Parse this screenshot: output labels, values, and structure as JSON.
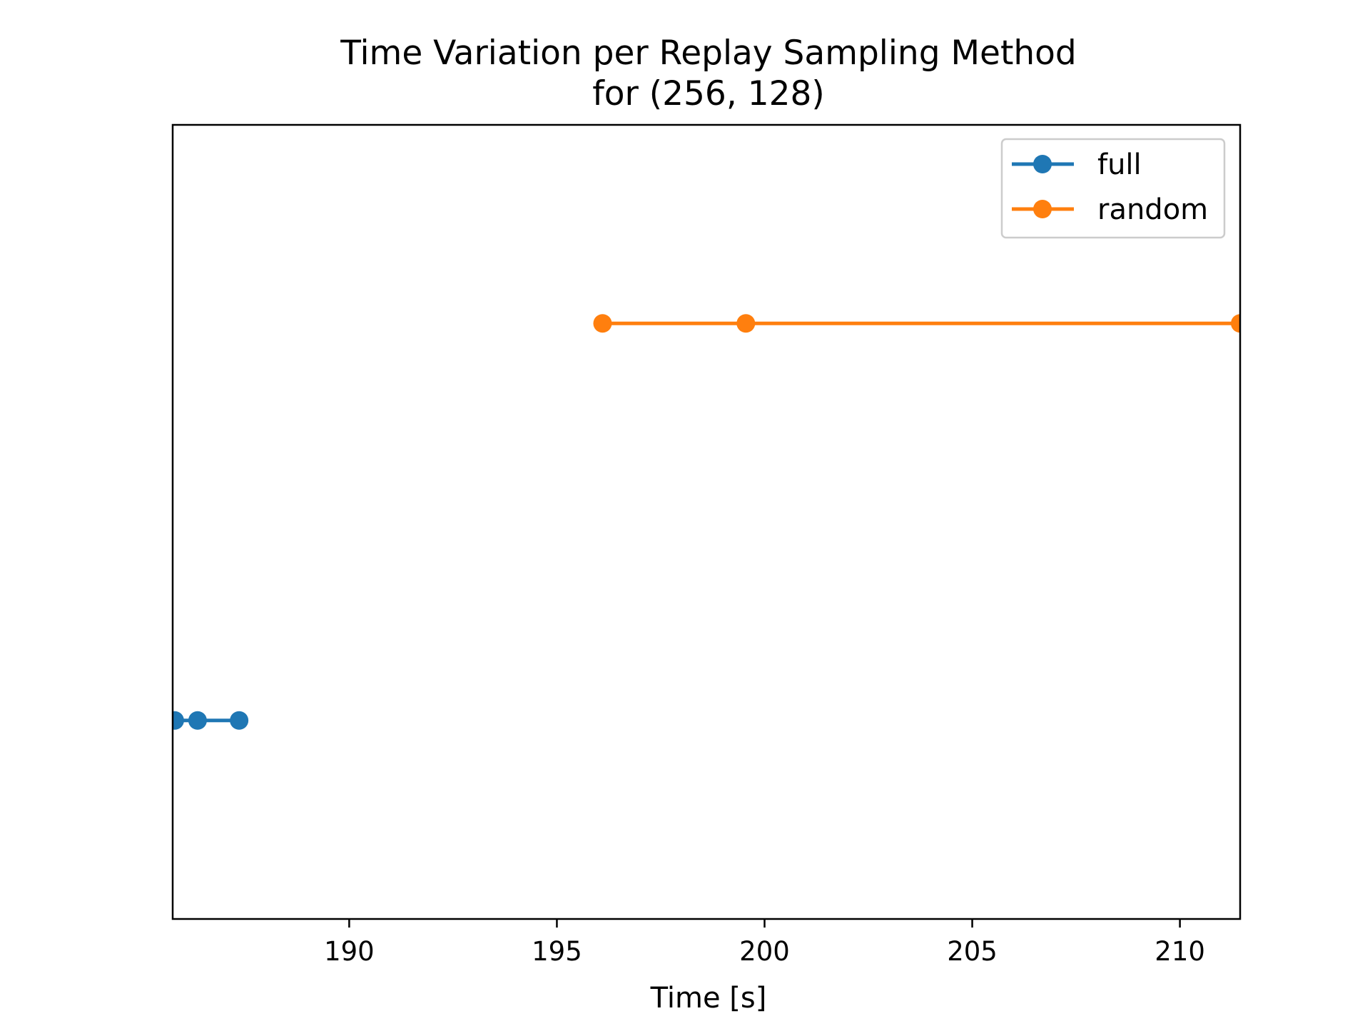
{
  "chart_data": {
    "type": "line",
    "title": "Time Variation per Replay Sampling Method",
    "subtitle": "for (256, 128)",
    "xlabel": "Time [s]",
    "ylabel": "",
    "xlim": [
      185.75,
      211.45
    ],
    "ylim": [
      -0.5,
      1.5
    ],
    "xticks": [
      190,
      195,
      200,
      205,
      210
    ],
    "yticks_visible": false,
    "grid": false,
    "legend_position": "top-right",
    "series": [
      {
        "name": "full",
        "color": "#1f77b4",
        "y": 0,
        "x": [
          185.8,
          186.35,
          187.35
        ]
      },
      {
        "name": "random",
        "color": "#ff7f0e",
        "y": 1,
        "x": [
          196.1,
          199.55,
          211.45
        ]
      }
    ]
  }
}
